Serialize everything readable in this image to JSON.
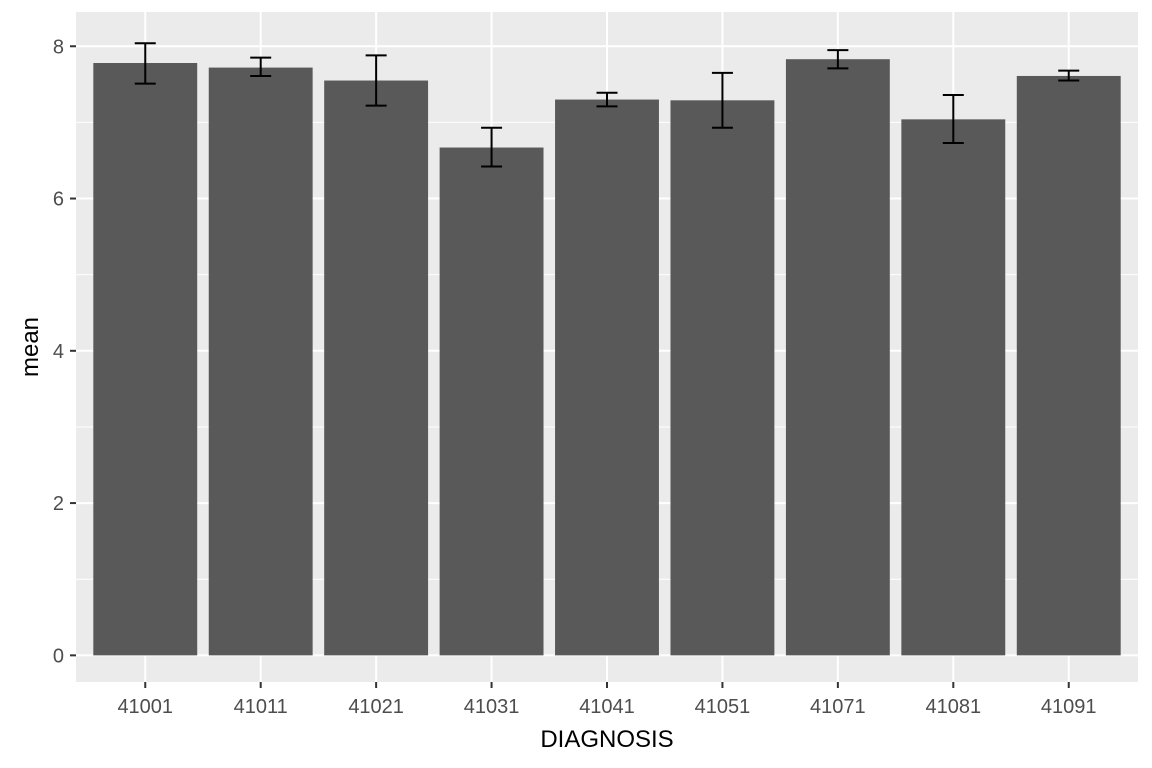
{
  "chart_data": {
    "type": "bar",
    "xlabel": "DIAGNOSIS",
    "ylabel": "mean",
    "categories": [
      "41001",
      "41011",
      "41021",
      "41031",
      "41041",
      "41051",
      "41071",
      "41081",
      "41091"
    ],
    "values": [
      7.78,
      7.72,
      7.55,
      6.67,
      7.3,
      7.29,
      7.83,
      7.04,
      7.61
    ],
    "error_low": [
      7.51,
      7.61,
      7.22,
      6.42,
      7.21,
      6.93,
      7.71,
      6.73,
      7.55
    ],
    "error_high": [
      8.04,
      7.85,
      7.88,
      6.93,
      7.39,
      7.65,
      7.95,
      7.36,
      7.68
    ],
    "ylim": [
      -0.35,
      8.45
    ],
    "yticks": [
      0,
      2,
      4,
      6,
      8
    ],
    "grid": true,
    "legend": "none",
    "colors": {
      "panel": "#ebebeb",
      "grid": "#ffffff",
      "bar": "#595959",
      "errorbar": "#000000",
      "tick_text": "#4d4d4d",
      "axis_title": "#000000",
      "tick_mark": "#333333"
    }
  }
}
